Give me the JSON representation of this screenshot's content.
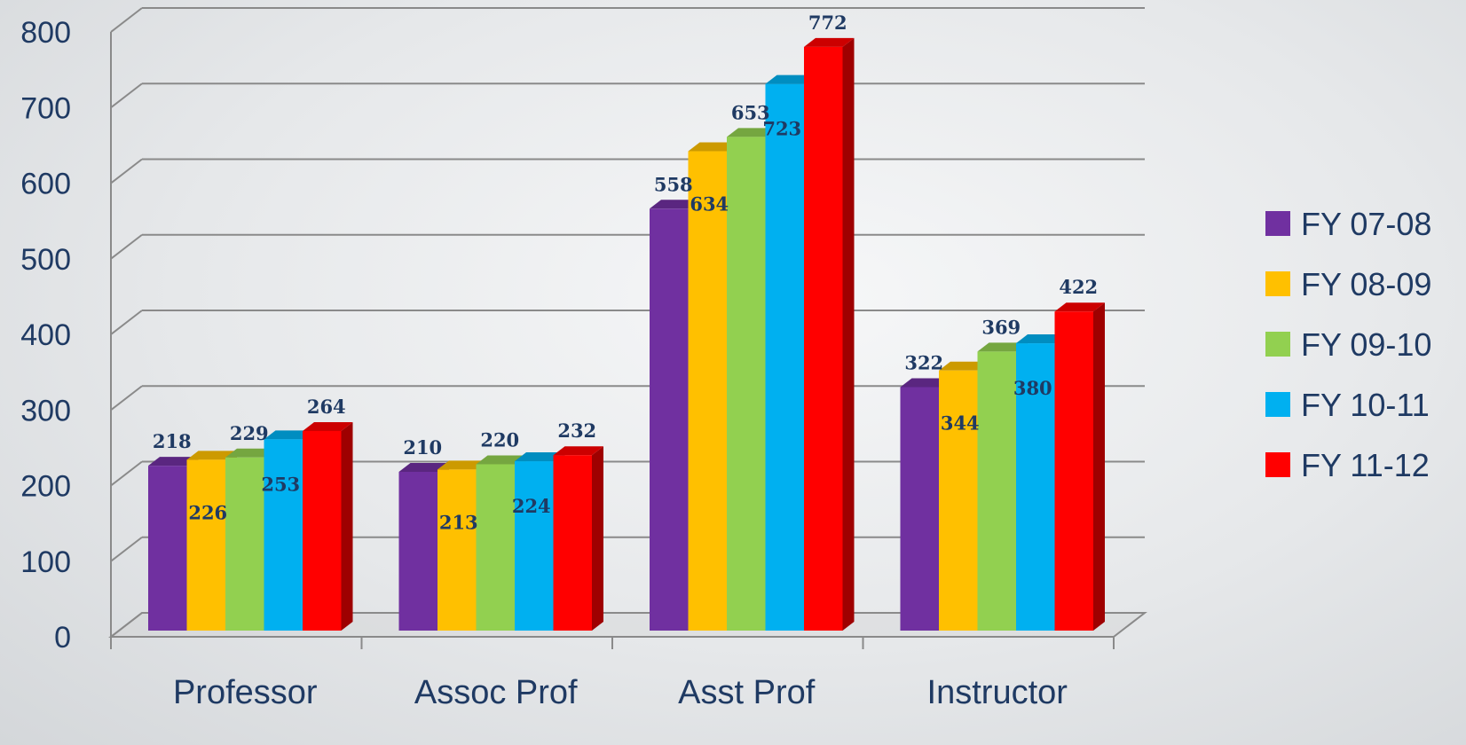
{
  "chart_data": {
    "type": "bar",
    "categories": [
      "Professor",
      "Assoc Prof",
      "Asst Prof",
      "Instructor"
    ],
    "series": [
      {
        "name": "FY 07-08",
        "color": "#7030a0",
        "values": [
          218,
          210,
          558,
          322
        ]
      },
      {
        "name": "FY 08-09",
        "color": "#ffc000",
        "values": [
          226,
          213,
          634,
          344
        ]
      },
      {
        "name": "FY 09-10",
        "color": "#92d050",
        "values": [
          229,
          220,
          653,
          369
        ]
      },
      {
        "name": "FY 10-11",
        "color": "#00b0f0",
        "values": [
          253,
          224,
          723,
          380
        ]
      },
      {
        "name": "FY 11-12",
        "color": "#ff0000",
        "values": [
          264,
          232,
          772,
          422
        ]
      }
    ],
    "ylim": [
      0,
      800
    ],
    "yticks": [
      0,
      100,
      200,
      300,
      400,
      500,
      600,
      700,
      800
    ],
    "grid": true,
    "legend_position": "right",
    "style": "3d-clustered-column"
  }
}
